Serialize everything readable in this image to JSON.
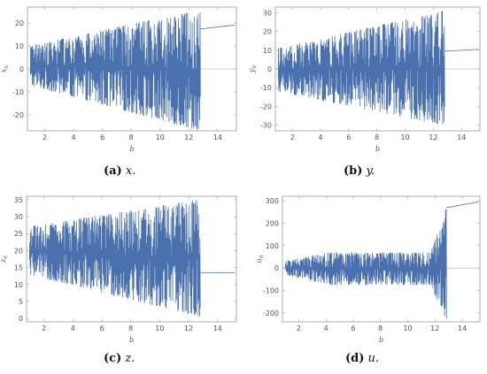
{
  "chart_data": [
    {
      "type": "line",
      "id": "x",
      "caption_letter": "(a)",
      "caption_var": "x.",
      "xlabel": "b",
      "ylabel": "x_n",
      "ylabel_main": "x",
      "ylabel_sub": "n",
      "xlim": [
        0.8,
        15.3
      ],
      "ylim": [
        -27,
        27
      ],
      "xticks": [
        2,
        4,
        6,
        8,
        10,
        12,
        14
      ],
      "yticks": [
        -20,
        -10,
        0,
        10,
        20
      ],
      "zero_line": true,
      "chaos_range": [
        1.0,
        12.8
      ],
      "chaos_start_envelope": [
        -7,
        10
      ],
      "chaos_end_envelope": [
        -27,
        26
      ],
      "tail": {
        "x": [
          12.9,
          15.2
        ],
        "y": [
          17.5,
          19.2
        ]
      },
      "color": "#4a71ad"
    },
    {
      "type": "line",
      "id": "y",
      "caption_letter": "(b)",
      "caption_var": "y.",
      "xlabel": "b",
      "ylabel": "y_n",
      "ylabel_main": "y",
      "ylabel_sub": "n",
      "xlim": [
        0.8,
        15.3
      ],
      "ylim": [
        -33,
        33
      ],
      "xticks": [
        2,
        4,
        6,
        8,
        10,
        12,
        14
      ],
      "yticks": [
        -30,
        -20,
        -10,
        0,
        10,
        20,
        30
      ],
      "zero_line": true,
      "chaos_range": [
        1.0,
        12.8
      ],
      "chaos_start_envelope": [
        -12,
        11
      ],
      "chaos_end_envelope": [
        -30,
        31
      ],
      "tail": {
        "x": [
          12.9,
          15.2
        ],
        "y": [
          9.5,
          10.5
        ]
      },
      "color": "#4a71ad"
    },
    {
      "type": "line",
      "id": "z",
      "caption_letter": "(c)",
      "caption_var": "z.",
      "xlabel": "b",
      "ylabel": "z_n",
      "ylabel_main": "z",
      "ylabel_sub": "n",
      "xlim": [
        0.8,
        15.3
      ],
      "ylim": [
        -1,
        36
      ],
      "xticks": [
        2,
        4,
        6,
        8,
        10,
        12,
        14
      ],
      "yticks": [
        0,
        5,
        10,
        15,
        20,
        25,
        30,
        35
      ],
      "zero_line": false,
      "chaos_range": [
        1.0,
        12.8
      ],
      "chaos_start_envelope": [
        13,
        27
      ],
      "chaos_end_envelope": [
        0.5,
        35
      ],
      "tail": {
        "x": [
          12.9,
          15.2
        ],
        "y": [
          13.5,
          13.5
        ]
      },
      "color": "#4a71ad"
    },
    {
      "type": "line",
      "id": "u",
      "caption_letter": "(d)",
      "caption_var": "u.",
      "xlabel": "b",
      "ylabel": "u_n",
      "ylabel_main": "u",
      "ylabel_sub": "n",
      "xlim": [
        0.8,
        15.3
      ],
      "ylim": [
        -240,
        320
      ],
      "xticks": [
        2,
        4,
        6,
        8,
        10,
        12,
        14
      ],
      "yticks": [
        -200,
        -100,
        0,
        100,
        200,
        300
      ],
      "zero_line": true,
      "chaos_range": [
        1.0,
        12.85
      ],
      "chaos_start_envelope": [
        -30,
        30
      ],
      "mid_envelope": [
        -100,
        90
      ],
      "chaos_end_envelope": [
        -235,
        270
      ],
      "tail": {
        "x": [
          12.9,
          15.2
        ],
        "y": [
          270,
          295
        ]
      },
      "color": "#4a71ad"
    }
  ]
}
